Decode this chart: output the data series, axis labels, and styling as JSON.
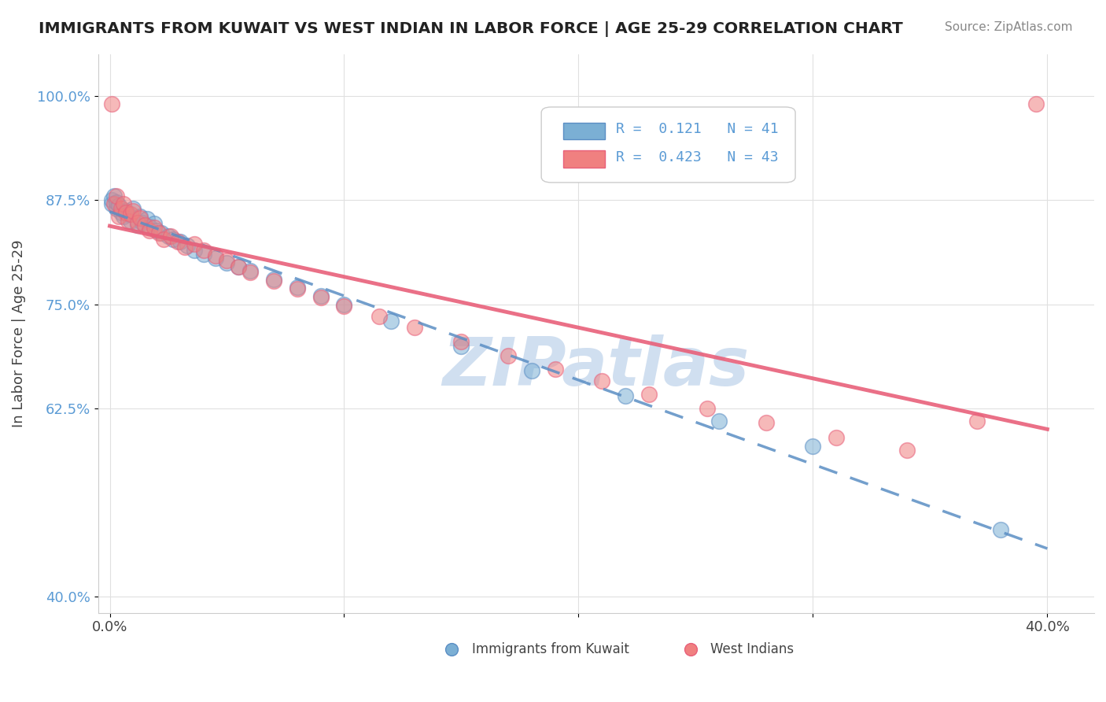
{
  "title": "IMMIGRANTS FROM KUWAIT VS WEST INDIAN IN LABOR FORCE | AGE 25-29 CORRELATION CHART",
  "source": "Source: ZipAtlas.com",
  "ylabel": "In Labor Force | Age 25-29",
  "x_ticks": [
    0.0,
    0.1,
    0.2,
    0.3,
    0.4
  ],
  "x_tick_labels": [
    "0.0%",
    "",
    "",
    "",
    "40.0%"
  ],
  "y_ticks": [
    0.4,
    0.625,
    0.75,
    0.875,
    1.0
  ],
  "y_tick_labels": [
    "40.0%",
    "62.5%",
    "75.0%",
    "87.5%",
    "100.0%"
  ],
  "xlim": [
    -0.005,
    0.42
  ],
  "ylim": [
    0.38,
    1.05
  ],
  "kuwait_R": 0.121,
  "kuwait_N": 41,
  "westindian_R": 0.423,
  "westindian_N": 43,
  "kuwait_color": "#7bafd4",
  "westindian_color": "#f08080",
  "kuwait_trend_color": "#5b8ec4",
  "westindian_trend_color": "#e8607a",
  "watermark": "ZIPatlas",
  "watermark_color": "#d0dff0",
  "kuwait_x": [
    0.001,
    0.001,
    0.002,
    0.003,
    0.003,
    0.004,
    0.005,
    0.006,
    0.007,
    0.008,
    0.009,
    0.01,
    0.012,
    0.013,
    0.014,
    0.016,
    0.017,
    0.019,
    0.02,
    0.022,
    0.025,
    0.027,
    0.03,
    0.033,
    0.036,
    0.04,
    0.045,
    0.05,
    0.055,
    0.06,
    0.07,
    0.08,
    0.09,
    0.1,
    0.12,
    0.15,
    0.18,
    0.22,
    0.26,
    0.3,
    0.38
  ],
  "kuwait_y": [
    0.87,
    0.875,
    0.88,
    0.865,
    0.872,
    0.868,
    0.86,
    0.855,
    0.862,
    0.858,
    0.85,
    0.865,
    0.845,
    0.855,
    0.848,
    0.852,
    0.843,
    0.847,
    0.838,
    0.835,
    0.832,
    0.828,
    0.825,
    0.82,
    0.815,
    0.81,
    0.805,
    0.8,
    0.795,
    0.79,
    0.78,
    0.77,
    0.76,
    0.75,
    0.73,
    0.7,
    0.67,
    0.64,
    0.61,
    0.58,
    0.48
  ],
  "westindian_x": [
    0.001,
    0.002,
    0.003,
    0.004,
    0.005,
    0.006,
    0.007,
    0.008,
    0.009,
    0.01,
    0.012,
    0.013,
    0.015,
    0.017,
    0.019,
    0.021,
    0.023,
    0.026,
    0.029,
    0.032,
    0.036,
    0.04,
    0.045,
    0.05,
    0.055,
    0.06,
    0.07,
    0.08,
    0.09,
    0.1,
    0.115,
    0.13,
    0.15,
    0.17,
    0.19,
    0.21,
    0.23,
    0.255,
    0.28,
    0.31,
    0.34,
    0.37,
    0.395
  ],
  "westindian_y": [
    0.99,
    0.87,
    0.88,
    0.855,
    0.865,
    0.87,
    0.86,
    0.85,
    0.858,
    0.862,
    0.848,
    0.853,
    0.845,
    0.838,
    0.842,
    0.835,
    0.828,
    0.832,
    0.825,
    0.818,
    0.822,
    0.815,
    0.808,
    0.802,
    0.795,
    0.788,
    0.778,
    0.768,
    0.758,
    0.748,
    0.735,
    0.722,
    0.705,
    0.688,
    0.672,
    0.658,
    0.642,
    0.625,
    0.608,
    0.59,
    0.575,
    0.61,
    0.99
  ],
  "background_color": "#ffffff",
  "grid_color": "#e0e0e0"
}
